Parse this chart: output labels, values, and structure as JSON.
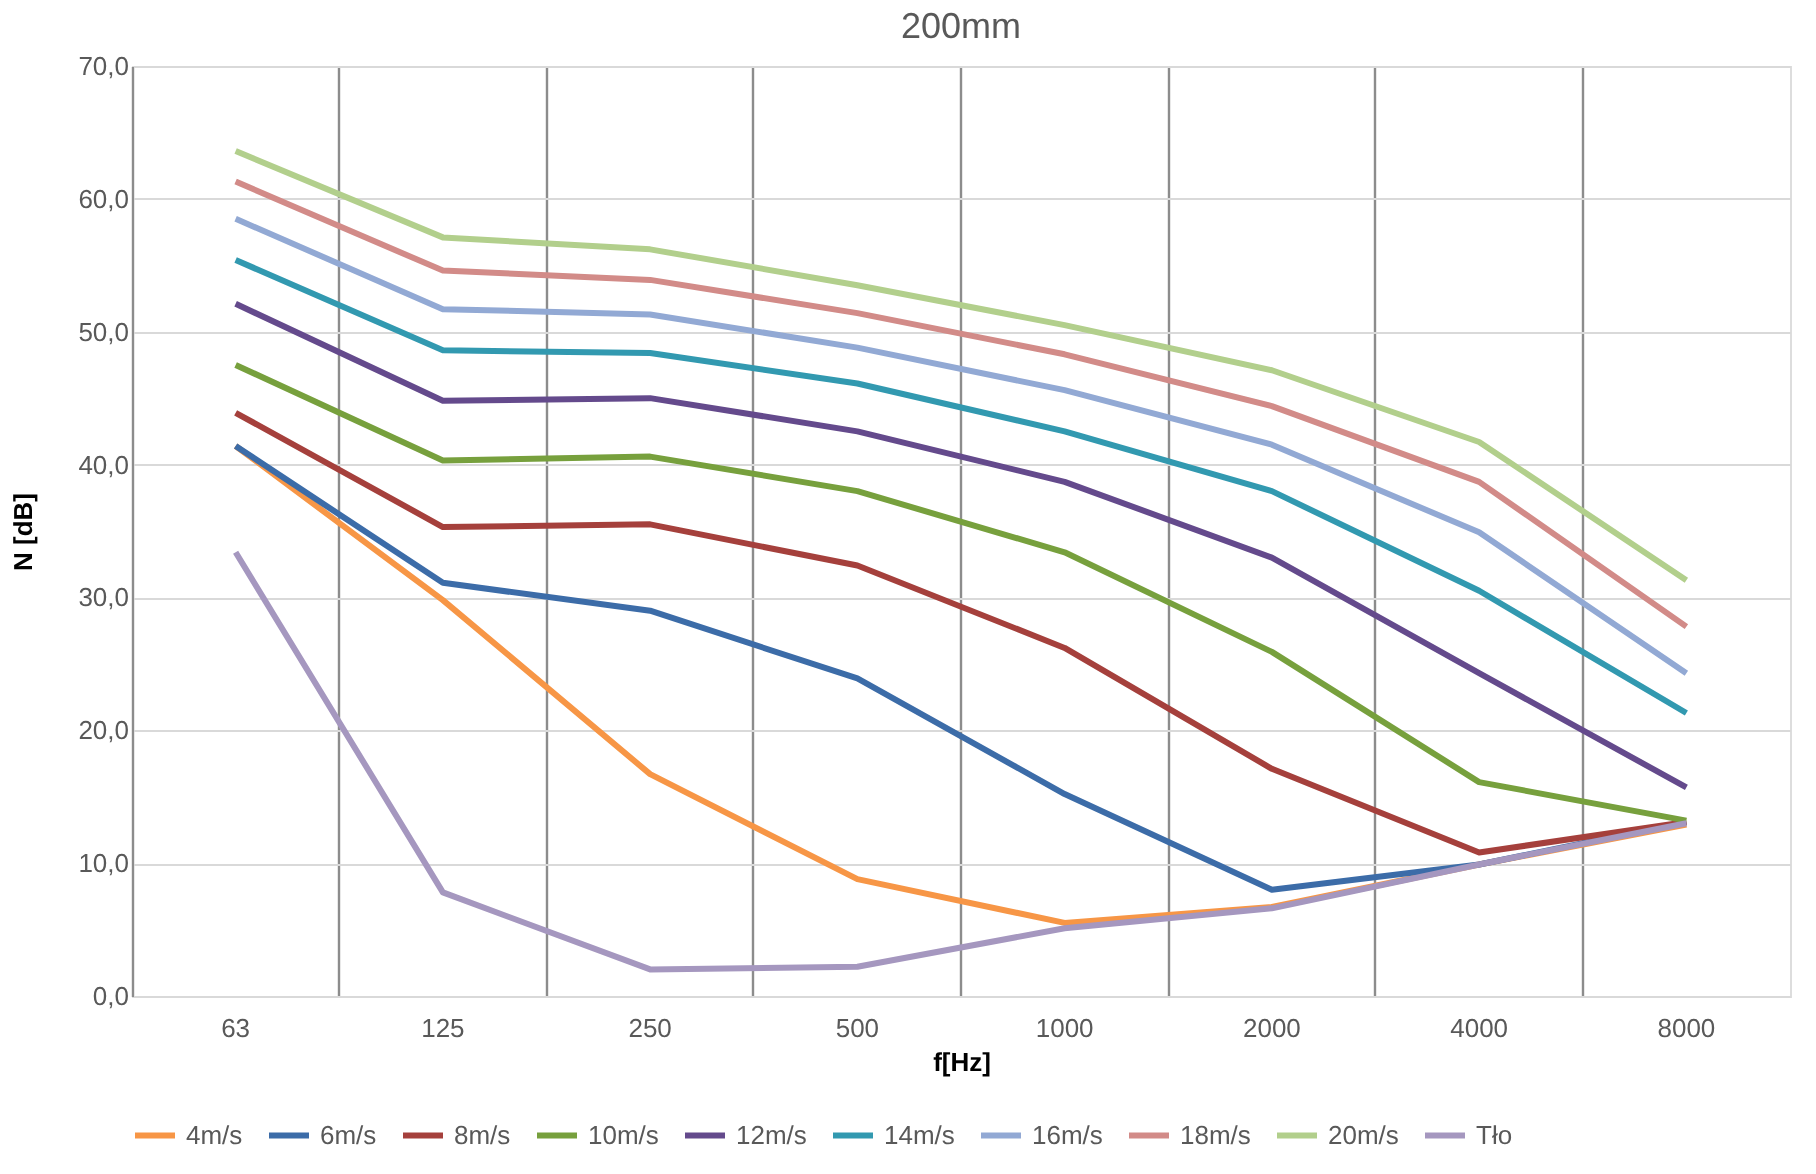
{
  "chart_data": {
    "type": "line",
    "title": "200mm",
    "xlabel": "f[Hz]",
    "ylabel": "N [dB]",
    "categories": [
      "63",
      "125",
      "250",
      "500",
      "1000",
      "2000",
      "4000",
      "8000"
    ],
    "ylim": [
      0,
      70
    ],
    "yticks": [
      {
        "value": 0,
        "label": "0,0"
      },
      {
        "value": 10,
        "label": "10,0"
      },
      {
        "value": 20,
        "label": "20,0"
      },
      {
        "value": 30,
        "label": "30,0"
      },
      {
        "value": 40,
        "label": "40,0"
      },
      {
        "value": 50,
        "label": "50,0"
      },
      {
        "value": 60,
        "label": "60,0"
      },
      {
        "value": 70,
        "label": "70,0"
      }
    ],
    "grid": true,
    "legend": "bottom",
    "marker": "none",
    "line_style": "solid",
    "series": [
      {
        "name": "4m/s",
        "color": "#f79646",
        "values": [
          41.4,
          29.8,
          16.7,
          8.8,
          5.5,
          6.7,
          9.9,
          12.9
        ]
      },
      {
        "name": "6m/s",
        "color": "#3c6ca8",
        "values": [
          41.4,
          31.1,
          29.0,
          23.9,
          15.2,
          8.0,
          9.9,
          13.1
        ]
      },
      {
        "name": "8m/s",
        "color": "#a5403c",
        "values": [
          43.9,
          35.3,
          35.5,
          32.4,
          26.2,
          17.1,
          10.8,
          13.1
        ]
      },
      {
        "name": "10m/s",
        "color": "#77a03d",
        "values": [
          47.5,
          40.3,
          40.6,
          38.0,
          33.4,
          25.9,
          16.1,
          13.2
        ]
      },
      {
        "name": "12m/s",
        "color": "#644a8c",
        "values": [
          52.1,
          44.8,
          45.0,
          42.5,
          38.7,
          33.0,
          24.3,
          15.7
        ]
      },
      {
        "name": "14m/s",
        "color": "#3299b0",
        "values": [
          55.4,
          48.6,
          48.4,
          46.1,
          42.5,
          38.0,
          30.5,
          21.3
        ]
      },
      {
        "name": "16m/s",
        "color": "#92a9d4",
        "values": [
          58.5,
          51.7,
          51.3,
          48.8,
          45.6,
          41.5,
          34.9,
          24.3
        ]
      },
      {
        "name": "18m/s",
        "color": "#d28b88",
        "values": [
          61.3,
          54.6,
          53.9,
          51.4,
          48.3,
          44.4,
          38.7,
          27.8
        ]
      },
      {
        "name": "20m/s",
        "color": "#b2cf8c",
        "values": [
          63.6,
          57.1,
          56.2,
          53.5,
          50.5,
          47.1,
          41.7,
          31.3
        ]
      },
      {
        "name": "Tło",
        "color": "#a597bf",
        "values": [
          33.4,
          7.8,
          2.0,
          2.2,
          5.1,
          6.6,
          9.9,
          13.0
        ]
      }
    ]
  }
}
